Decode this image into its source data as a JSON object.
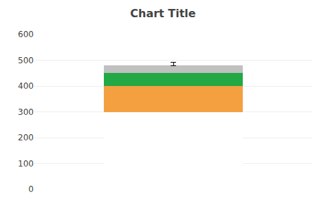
{
  "chart_data": {
    "type": "bar",
    "title": "Chart Title",
    "stacked": true,
    "categories": [
      null
    ],
    "series": [
      {
        "color": "#ffffff",
        "values": [
          300
        ]
      },
      {
        "color": "#f4a041",
        "values": [
          100
        ]
      },
      {
        "color": "#22a845",
        "values": [
          50
        ]
      },
      {
        "color": "#c0c0c0",
        "values": [
          30
        ],
        "error_plus": [
          12
        ],
        "error_minus": [
          0
        ],
        "error_color": "#000000"
      }
    ],
    "ylim": [
      0,
      600
    ],
    "yticks": [
      0,
      100,
      200,
      300,
      400,
      500,
      600
    ],
    "grid": true,
    "tick_labels": "y"
  }
}
